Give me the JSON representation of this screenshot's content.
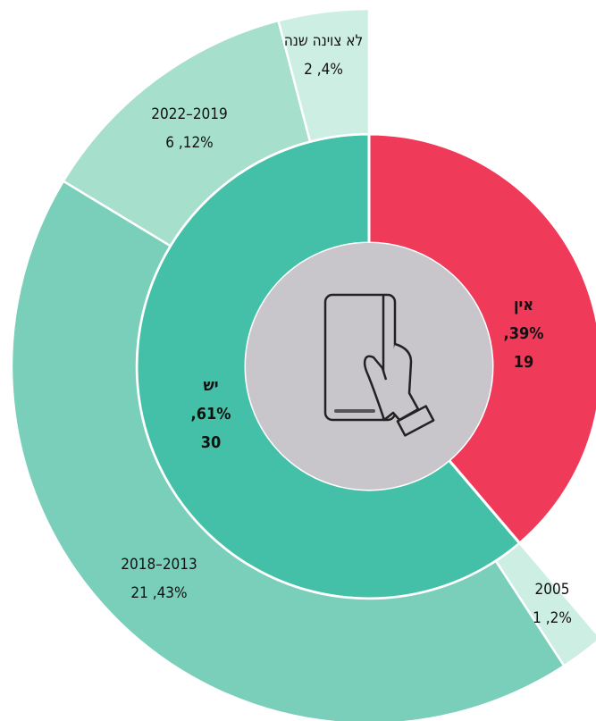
{
  "chart_data": {
    "type": "sunburst",
    "inner": {
      "categories": [
        "אין",
        "יש"
      ],
      "values": [
        19,
        30
      ],
      "percents": [
        39,
        61
      ],
      "percent_labels": [
        ",39%",
        ",61%"
      ],
      "colors": [
        "#ef3a5a",
        "#45c0a8"
      ]
    },
    "outer": {
      "categories": [
        "2005",
        "2018–2013",
        "2022–2019",
        "לא צוינה שנה"
      ],
      "values": [
        1,
        21,
        6,
        2
      ],
      "percents": [
        2,
        43,
        12,
        4
      ],
      "percent_labels": [
        ",2%",
        ",43%",
        ",12%",
        ",4%"
      ],
      "colors": [
        "#cdeee3",
        "#79cfba",
        "#a6dfcc",
        "#cdeee3"
      ]
    }
  }
}
